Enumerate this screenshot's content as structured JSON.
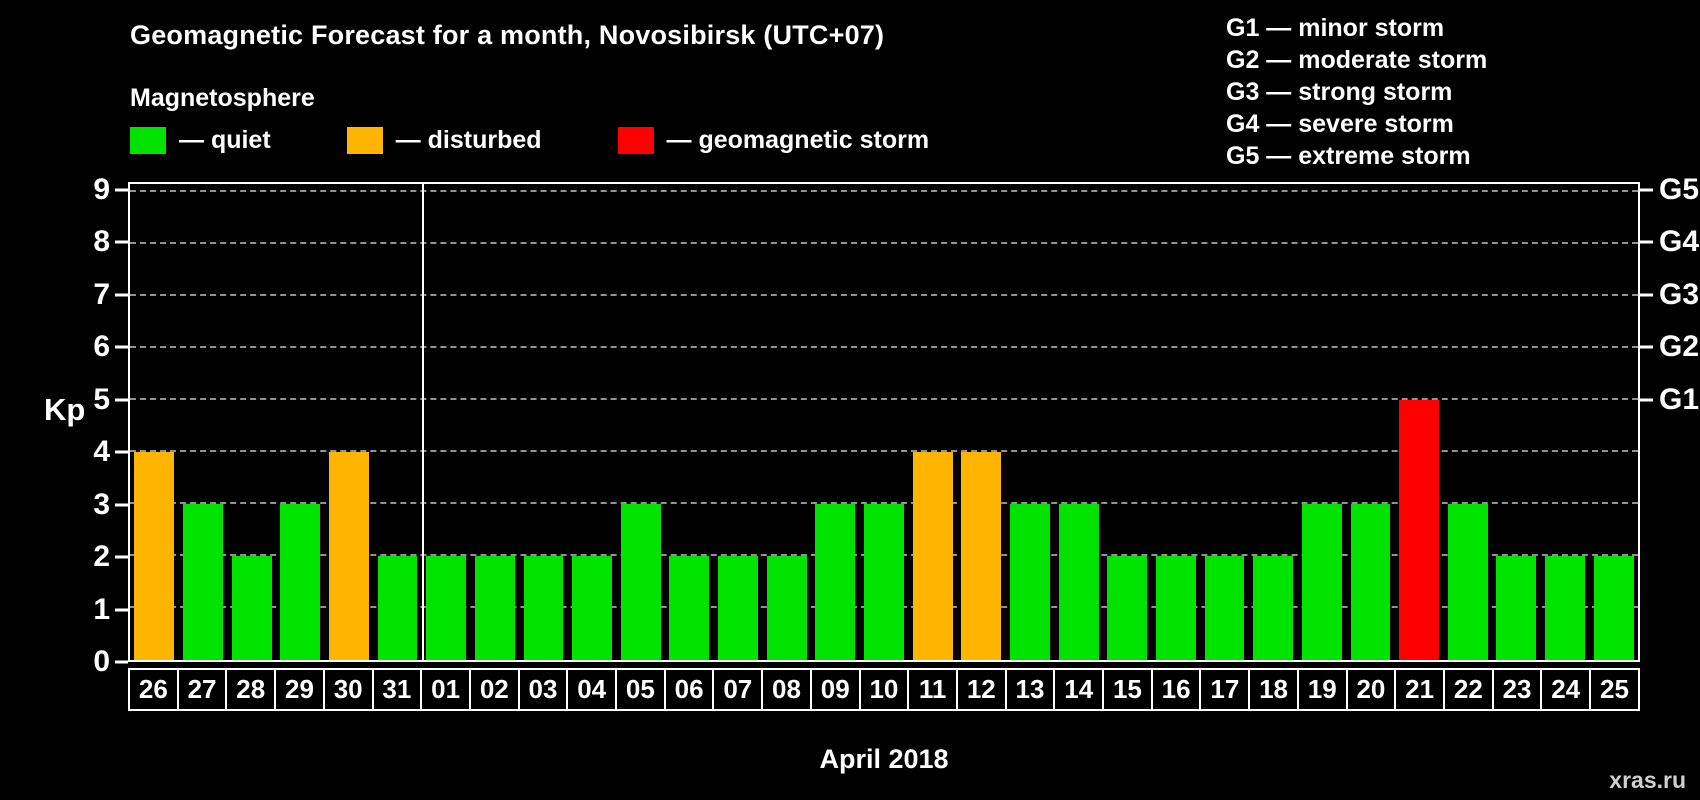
{
  "title": "Geomagnetic Forecast for a month, Novosibirsk (UTC+07)",
  "subtitle": "Magnetosphere",
  "legend": [
    {
      "key": "quiet",
      "label": "— quiet",
      "color": "#00e300"
    },
    {
      "key": "disturbed",
      "label": "— disturbed",
      "color": "#ffb400"
    },
    {
      "key": "storm",
      "label": "— geomagnetic storm",
      "color": "#ff0000"
    }
  ],
  "status_colors": {
    "quiet": "#00e300",
    "disturbed": "#ffb400",
    "storm": "#ff0000"
  },
  "storm_scale": [
    "G1 — minor storm",
    "G2 — moderate storm",
    "G3 — strong storm",
    "G4 — severe storm",
    "G5 — extreme storm"
  ],
  "watermark": "xras.ru",
  "chart_data": {
    "type": "bar",
    "title": "Geomagnetic Forecast for a month, Novosibirsk (UTC+07)",
    "xlabel": "April 2018",
    "ylabel": "Kp",
    "ylim": [
      0,
      9
    ],
    "grid": true,
    "legend_position": "top-left",
    "categories": [
      "26",
      "27",
      "28",
      "29",
      "30",
      "31",
      "01",
      "02",
      "03",
      "04",
      "05",
      "06",
      "07",
      "08",
      "09",
      "10",
      "11",
      "12",
      "13",
      "14",
      "15",
      "16",
      "17",
      "18",
      "19",
      "20",
      "21",
      "22",
      "23",
      "24",
      "25"
    ],
    "values": [
      4,
      3,
      2,
      3,
      4,
      2,
      2,
      2,
      2,
      2,
      3,
      2,
      2,
      2,
      3,
      3,
      4,
      4,
      3,
      3,
      2,
      2,
      2,
      2,
      3,
      3,
      5,
      3,
      2,
      2,
      2
    ],
    "statuses": [
      "disturbed",
      "quiet",
      "quiet",
      "quiet",
      "disturbed",
      "quiet",
      "quiet",
      "quiet",
      "quiet",
      "quiet",
      "quiet",
      "quiet",
      "quiet",
      "quiet",
      "quiet",
      "quiet",
      "disturbed",
      "disturbed",
      "quiet",
      "quiet",
      "quiet",
      "quiet",
      "quiet",
      "quiet",
      "quiet",
      "quiet",
      "storm",
      "quiet",
      "quiet",
      "quiet",
      "quiet"
    ],
    "separator_index": 6,
    "y_ticks": [
      0,
      1,
      2,
      3,
      4,
      5,
      6,
      7,
      8,
      9
    ],
    "right_axis": [
      {
        "kp": 5,
        "label": "G1"
      },
      {
        "kp": 6,
        "label": "G2"
      },
      {
        "kp": 7,
        "label": "G3"
      },
      {
        "kp": 8,
        "label": "G4"
      },
      {
        "kp": 9,
        "label": "G5"
      }
    ]
  }
}
